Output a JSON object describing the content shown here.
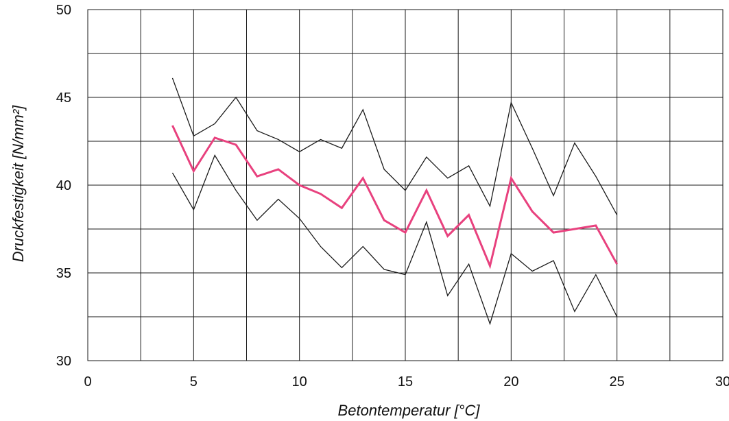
{
  "chart_data": {
    "type": "line",
    "xlabel": "Betontemperatur [°C]",
    "ylabel": "Druckfestigkeit [N/mm²]",
    "xlim": [
      0,
      30
    ],
    "ylim": [
      30,
      50
    ],
    "x_ticks": [
      "0",
      "5",
      "10",
      "15",
      "20",
      "25",
      "30"
    ],
    "y_ticks": [
      "30",
      "35",
      "40",
      "45",
      "50"
    ],
    "grid": true,
    "x": [
      4,
      5,
      6,
      7,
      8,
      9,
      10,
      11,
      12,
      13,
      14,
      15,
      16,
      17,
      18,
      19,
      20,
      21,
      22,
      23,
      24,
      25
    ],
    "series": [
      {
        "color": "#1a1a1a",
        "values": [
          46.1,
          42.8,
          43.5,
          45.0,
          43.1,
          42.6,
          41.9,
          42.6,
          42.1,
          44.3,
          40.9,
          39.7,
          41.6,
          40.4,
          41.1,
          38.8,
          44.7,
          42.1,
          39.4,
          42.4,
          40.5,
          38.3
        ]
      },
      {
        "color": "#e8417e",
        "values": [
          43.4,
          40.8,
          42.7,
          42.3,
          40.5,
          40.9,
          40.0,
          39.5,
          38.7,
          40.4,
          38.0,
          37.3,
          39.7,
          37.1,
          38.3,
          35.4,
          40.4,
          38.5,
          37.3,
          37.5,
          37.7,
          35.5
        ]
      },
      {
        "color": "#1a1a1a",
        "values": [
          40.7,
          38.6,
          41.7,
          39.7,
          38.0,
          39.2,
          38.1,
          36.5,
          35.3,
          36.5,
          35.2,
          34.9,
          37.9,
          33.7,
          35.5,
          32.1,
          36.1,
          35.1,
          35.7,
          32.8,
          34.9,
          32.5
        ]
      }
    ]
  }
}
